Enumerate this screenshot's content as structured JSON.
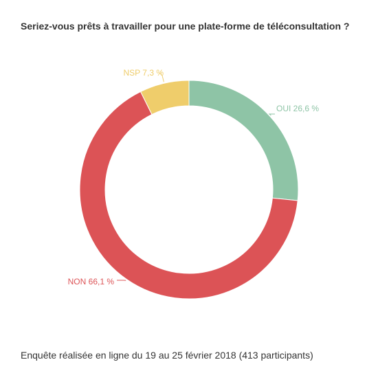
{
  "chart_data": {
    "type": "pie",
    "title": "Seriez-vous prêts à travailler pour une plate-forme de téléconsultation ?",
    "footnote": "Enquête réalisée en ligne du 19 au 25 février 2018  (413 participants)",
    "donut": true,
    "slices": [
      {
        "label": "OUI 26,6 %",
        "category": "OUI",
        "value": 26.6,
        "color": "#8ec4a6"
      },
      {
        "label": "NON 66,1 %",
        "category": "NON",
        "value": 66.1,
        "color": "#dc5356"
      },
      {
        "label": "NSP 7,3 %",
        "category": "NSP",
        "value": 7.3,
        "color": "#efcd6b"
      }
    ]
  }
}
